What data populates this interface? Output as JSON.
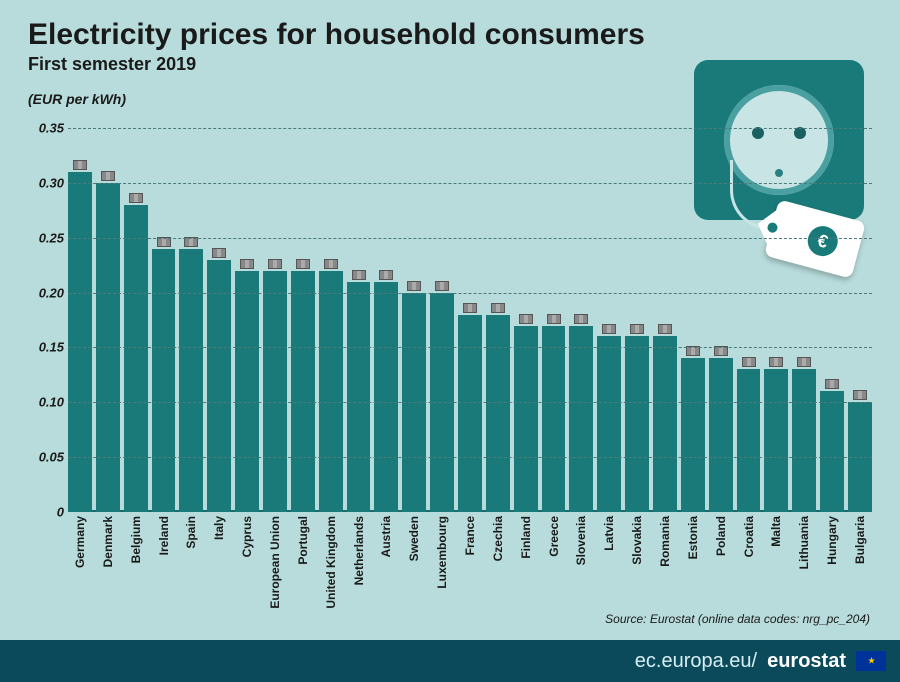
{
  "title": "Electricity prices for household consumers",
  "subtitle": "First semester 2019",
  "unit": "(EUR per kWh)",
  "source": "Source: Eurostat (online data codes: nrg_pc_204)",
  "footer_url_light": "ec.europa.eu/",
  "footer_url_bold": "eurostat",
  "chart": {
    "type": "bar",
    "ylim": [
      0,
      0.35
    ],
    "ytick_step": 0.05,
    "yticks": [
      "0",
      "0.05",
      "0.10",
      "0.15",
      "0.20",
      "0.25",
      "0.30",
      "0.35"
    ],
    "bar_color": "#1a7a7a",
    "background_color": "#b8dcdc",
    "grid_color": "#4a7a7a",
    "categories": [
      "Germany",
      "Denmark",
      "Belgium",
      "Ireland",
      "Spain",
      "Italy",
      "Cyprus",
      "European Union",
      "Portugal",
      "United Kingdom",
      "Netherlands",
      "Austria",
      "Sweden",
      "Luxembourg",
      "France",
      "Czechia",
      "Finland",
      "Greece",
      "Slovenia",
      "Latvia",
      "Slovakia",
      "Romania",
      "Estonia",
      "Poland",
      "Croatia",
      "Malta",
      "Lithuania",
      "Hungary",
      "Bulgaria"
    ],
    "values": [
      0.31,
      0.3,
      0.28,
      0.24,
      0.24,
      0.23,
      0.22,
      0.22,
      0.22,
      0.22,
      0.21,
      0.21,
      0.2,
      0.2,
      0.18,
      0.18,
      0.17,
      0.17,
      0.17,
      0.16,
      0.16,
      0.16,
      0.14,
      0.14,
      0.13,
      0.13,
      0.13,
      0.11,
      0.1
    ]
  },
  "footer_bg": "#0a4a5a",
  "title_fontsize": 30,
  "label_fontsize": 12
}
